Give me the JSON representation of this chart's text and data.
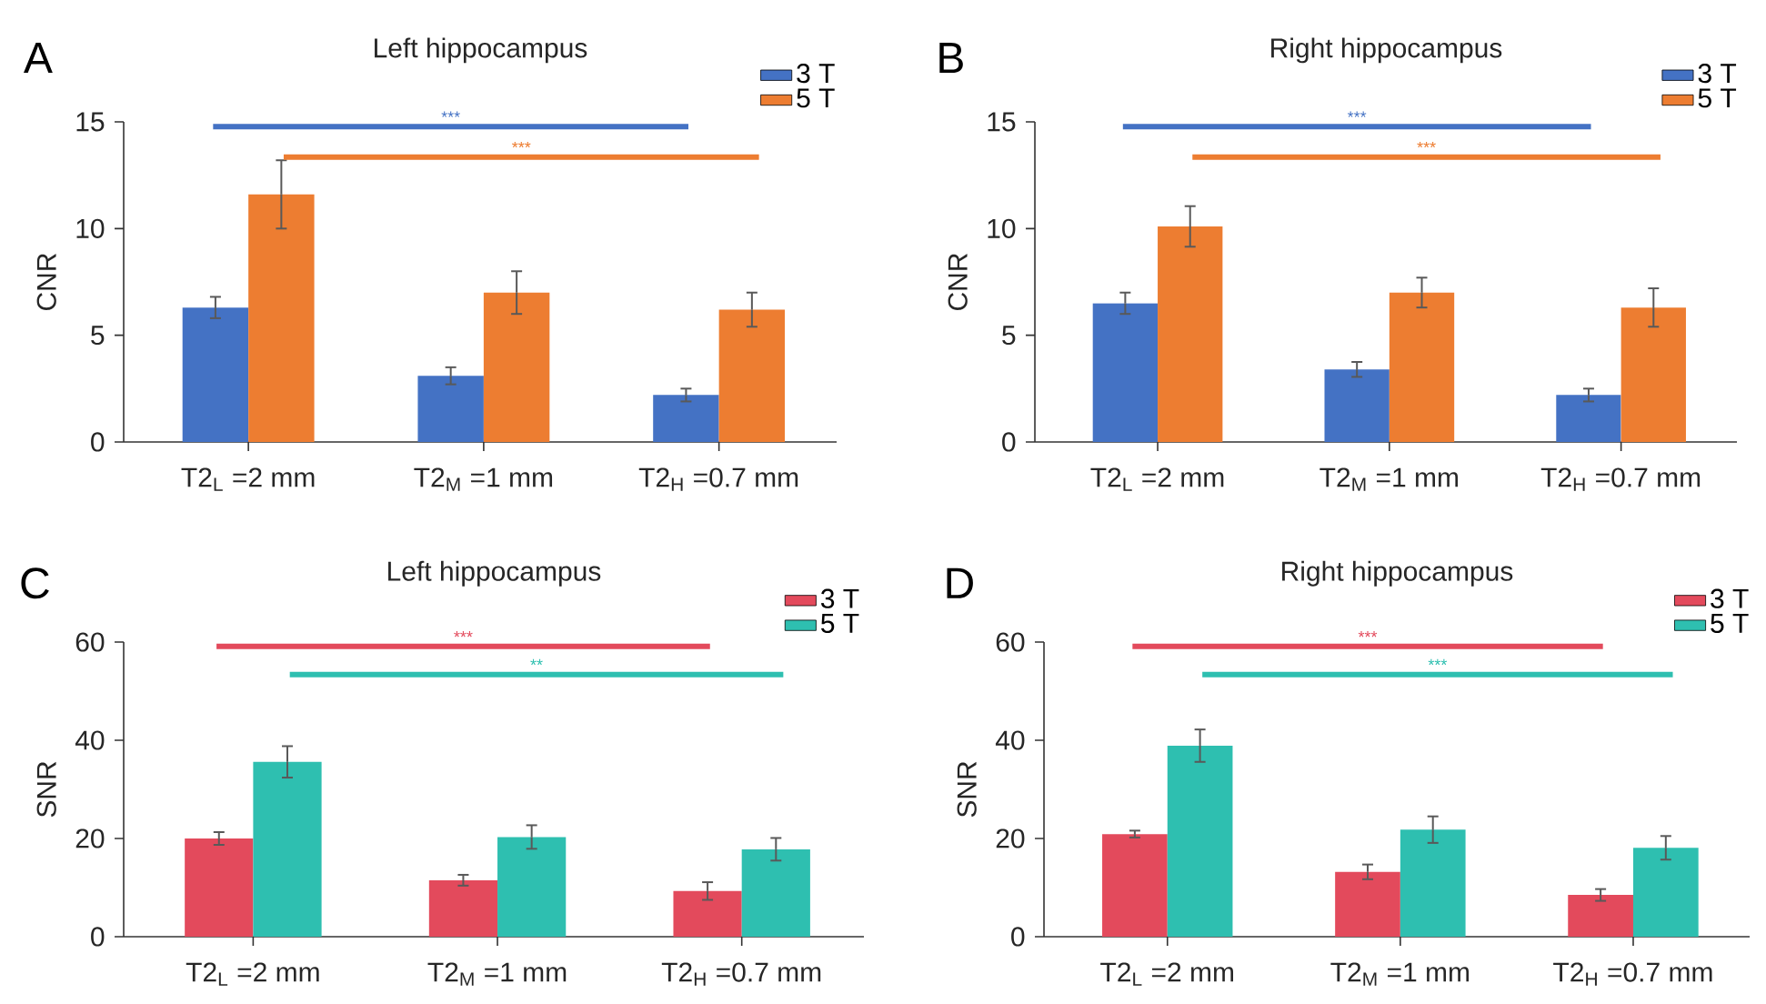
{
  "chart_data": [
    {
      "type": "bar",
      "title": "Left hippocampus",
      "ylabel": "CNR",
      "categories": [
        "T2$_{L}$ =2 mm",
        "T2$_{M}$ =1 mm",
        "T2$_{H}$ =0.7 mm"
      ],
      "series": [
        {
          "name": "3 T",
          "color": "#4472c4",
          "values": [
            6.3,
            3.1,
            2.2
          ],
          "errors": [
            0.5,
            0.4,
            0.3
          ]
        },
        {
          "name": "5 T",
          "color": "#ed7d31",
          "values": [
            11.6,
            7.0,
            6.2
          ],
          "errors": [
            1.6,
            1.0,
            0.8
          ]
        }
      ],
      "ylim": [
        0,
        15
      ],
      "yticks": [
        0,
        5,
        10,
        15
      ],
      "legend": "top right",
      "annotations": [
        "A",
        "***",
        "***"
      ]
    },
    {
      "type": "bar",
      "title": "Right hippocampus",
      "ylabel": "CNR",
      "categories": [
        "T2$_{L}$ =2 mm",
        "T2$_{M}$ =1 mm",
        "T2$_{H}$ =0.7 mm"
      ],
      "series": [
        {
          "name": "3 T",
          "color": "#4472c4",
          "values": [
            6.5,
            3.4,
            2.2
          ],
          "errors": [
            0.5,
            0.35,
            0.3
          ]
        },
        {
          "name": "5 T",
          "color": "#ed7d31",
          "values": [
            10.1,
            7.0,
            6.3
          ],
          "errors": [
            0.95,
            0.7,
            0.9
          ]
        }
      ],
      "ylim": [
        0,
        15
      ],
      "yticks": [
        0,
        5,
        10,
        15
      ],
      "legend": "top right",
      "annotations": [
        "B",
        "***",
        "***"
      ]
    },
    {
      "type": "bar",
      "title": "Left hippocampus",
      "ylabel": "SNR",
      "categories": [
        "T2$_{L}$ =2 mm",
        "T2$_{M}$ =1 mm",
        "T2$_{H}$ =0.7 mm"
      ],
      "series": [
        {
          "name": "3 T",
          "color": "#e34a5c",
          "values": [
            20.0,
            11.5,
            9.3
          ],
          "errors": [
            1.3,
            1.1,
            1.8
          ]
        },
        {
          "name": "5 T",
          "color": "#2ebfb0",
          "values": [
            35.6,
            20.3,
            17.8
          ],
          "errors": [
            3.2,
            2.4,
            2.3
          ]
        }
      ],
      "ylim": [
        0,
        60
      ],
      "yticks": [
        0,
        20,
        40,
        60
      ],
      "legend": "top right",
      "annotations": [
        "C",
        "***",
        "**"
      ]
    },
    {
      "type": "bar",
      "title": "Right hippocampus",
      "ylabel": "SNR",
      "categories": [
        "T2$_{L}$ =2 mm",
        "T2$_{M}$ =1 mm",
        "T2$_{H}$ =0.7 mm"
      ],
      "series": [
        {
          "name": "3 T",
          "color": "#e34a5c",
          "values": [
            20.9,
            13.2,
            8.5
          ],
          "errors": [
            0.7,
            1.5,
            1.2
          ]
        },
        {
          "name": "5 T",
          "color": "#2ebfb0",
          "values": [
            38.9,
            21.8,
            18.1
          ],
          "errors": [
            3.3,
            2.7,
            2.4
          ]
        }
      ],
      "ylim": [
        0,
        60
      ],
      "yticks": [
        0,
        20,
        40,
        60
      ],
      "legend": "top right",
      "annotations": [
        "D",
        "***",
        "***"
      ]
    }
  ]
}
